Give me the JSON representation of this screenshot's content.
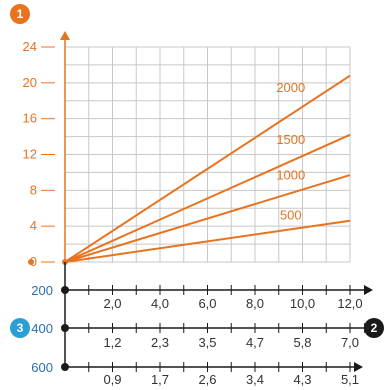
{
  "chart_data": {
    "type": "line",
    "y_axis": {
      "ticks": [
        0,
        4,
        8,
        12,
        16,
        20,
        24
      ],
      "ylim": [
        0,
        24
      ]
    },
    "x_axes": [
      {
        "row_label": "200",
        "ticks": [
          "2,0",
          "4,0",
          "6,0",
          "8,0",
          "10,0",
          "12,0"
        ]
      },
      {
        "row_label": "400",
        "ticks": [
          "1,2",
          "2,3",
          "3,5",
          "4,7",
          "5,8",
          "7,0"
        ]
      },
      {
        "row_label": "600",
        "ticks": [
          "0,9",
          "1,7",
          "2,6",
          "3,4",
          "4,3",
          "5,1"
        ]
      }
    ],
    "xlim": [
      0,
      12
    ],
    "series": [
      {
        "name": "2000",
        "x": [
          0,
          12
        ],
        "y": [
          0,
          20.8
        ]
      },
      {
        "name": "1500",
        "x": [
          0,
          12
        ],
        "y": [
          0,
          14.2
        ]
      },
      {
        "name": "1000",
        "x": [
          0,
          12
        ],
        "y": [
          0,
          9.7
        ]
      },
      {
        "name": "500",
        "x": [
          0,
          12
        ],
        "y": [
          0,
          4.6
        ]
      }
    ],
    "badges": [
      {
        "id": "y-axis-badge",
        "text": "1",
        "color": "#e8731e"
      },
      {
        "id": "x-axis-badge",
        "text": "2",
        "color": "#1a1a1a"
      },
      {
        "id": "row-badge",
        "text": "3",
        "color": "#2a9fd6"
      }
    ],
    "colors": {
      "accent": "#e8731e",
      "grid": "#c8c8c8",
      "axis": "#1a1a1a",
      "row_label": "#2a6fb3"
    },
    "grid": true
  }
}
